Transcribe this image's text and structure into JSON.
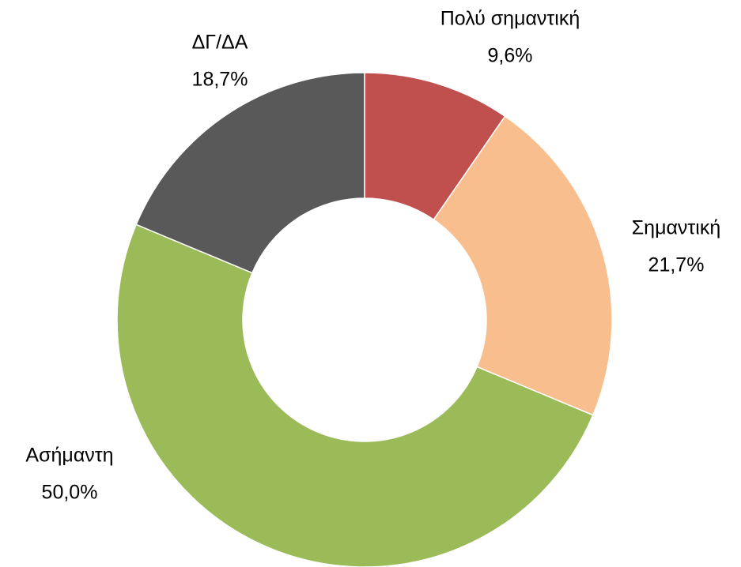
{
  "chart_data": {
    "type": "donut",
    "categories": [
      "Πολύ σημαντική",
      "Σημαντική",
      "Ασήμαντη",
      "ΔΓ/ΔΑ"
    ],
    "values": [
      9.6,
      21.7,
      50.0,
      18.7
    ],
    "value_labels": [
      "9,6%",
      "21,7%",
      "50,0%",
      "18,7%"
    ],
    "colors": [
      "#c0504d",
      "#f9be8e",
      "#9bbb59",
      "#595959"
    ]
  }
}
